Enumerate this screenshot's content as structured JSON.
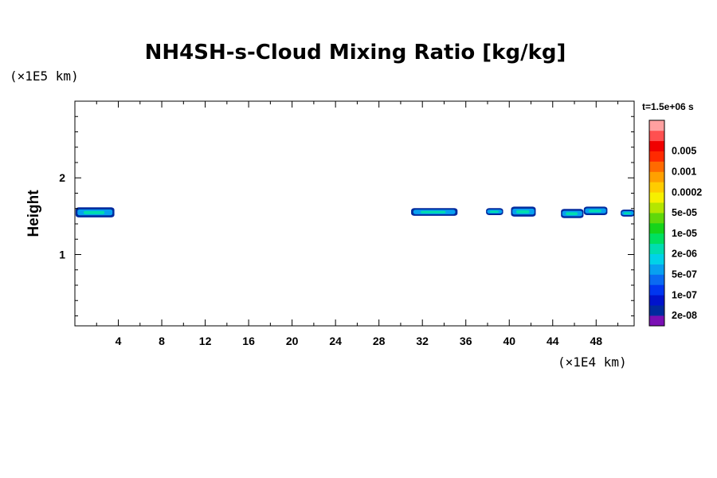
{
  "chart_data": {
    "type": "heatmap",
    "title": "NH4SH-s-Cloud Mixing Ratio [kg/kg]",
    "ylabel": "Height",
    "y_unit": "(×1E5 km)",
    "x_unit": "(×1E4 km)",
    "xlim": [
      0,
      51.5
    ],
    "ylim": [
      0.07,
      3.0
    ],
    "x_ticks": [
      4,
      8,
      12,
      16,
      20,
      24,
      28,
      32,
      36,
      40,
      44,
      48
    ],
    "y_ticks": [
      1,
      2
    ],
    "x_minor_step": 2,
    "y_minor_step": 0.2,
    "time_label": "t=1.5e+06 s",
    "colorbar": {
      "colors": [
        "#7a0fb4",
        "#002a9e",
        "#0013cc",
        "#0036f0",
        "#0a6af2",
        "#08a0f0",
        "#00d2e8",
        "#00ddb0",
        "#00e060",
        "#16d41a",
        "#60d80a",
        "#b4e600",
        "#f6f000",
        "#ffcc00",
        "#ffa000",
        "#ff6a00",
        "#ff2a00",
        "#f00000",
        "#ff5050",
        "#ffa0a0"
      ],
      "labels": [
        "2e-08",
        "1e-07",
        "5e-07",
        "2e-06",
        "1e-05",
        "5e-05",
        "0.0002",
        "0.001",
        "0.005"
      ]
    },
    "cloud_patches": [
      {
        "x": [
          0.1,
          3.6
        ],
        "y": [
          1.49,
          1.61
        ]
      },
      {
        "x": [
          31.0,
          35.2
        ],
        "y": [
          1.51,
          1.6
        ]
      },
      {
        "x": [
          37.9,
          39.4
        ],
        "y": [
          1.52,
          1.6
        ]
      },
      {
        "x": [
          40.2,
          42.4
        ],
        "y": [
          1.5,
          1.62
        ]
      },
      {
        "x": [
          44.8,
          46.8
        ],
        "y": [
          1.48,
          1.59
        ]
      },
      {
        "x": [
          46.9,
          49.0
        ],
        "y": [
          1.52,
          1.62
        ]
      },
      {
        "x": [
          50.3,
          51.5
        ],
        "y": [
          1.5,
          1.58
        ]
      }
    ]
  }
}
